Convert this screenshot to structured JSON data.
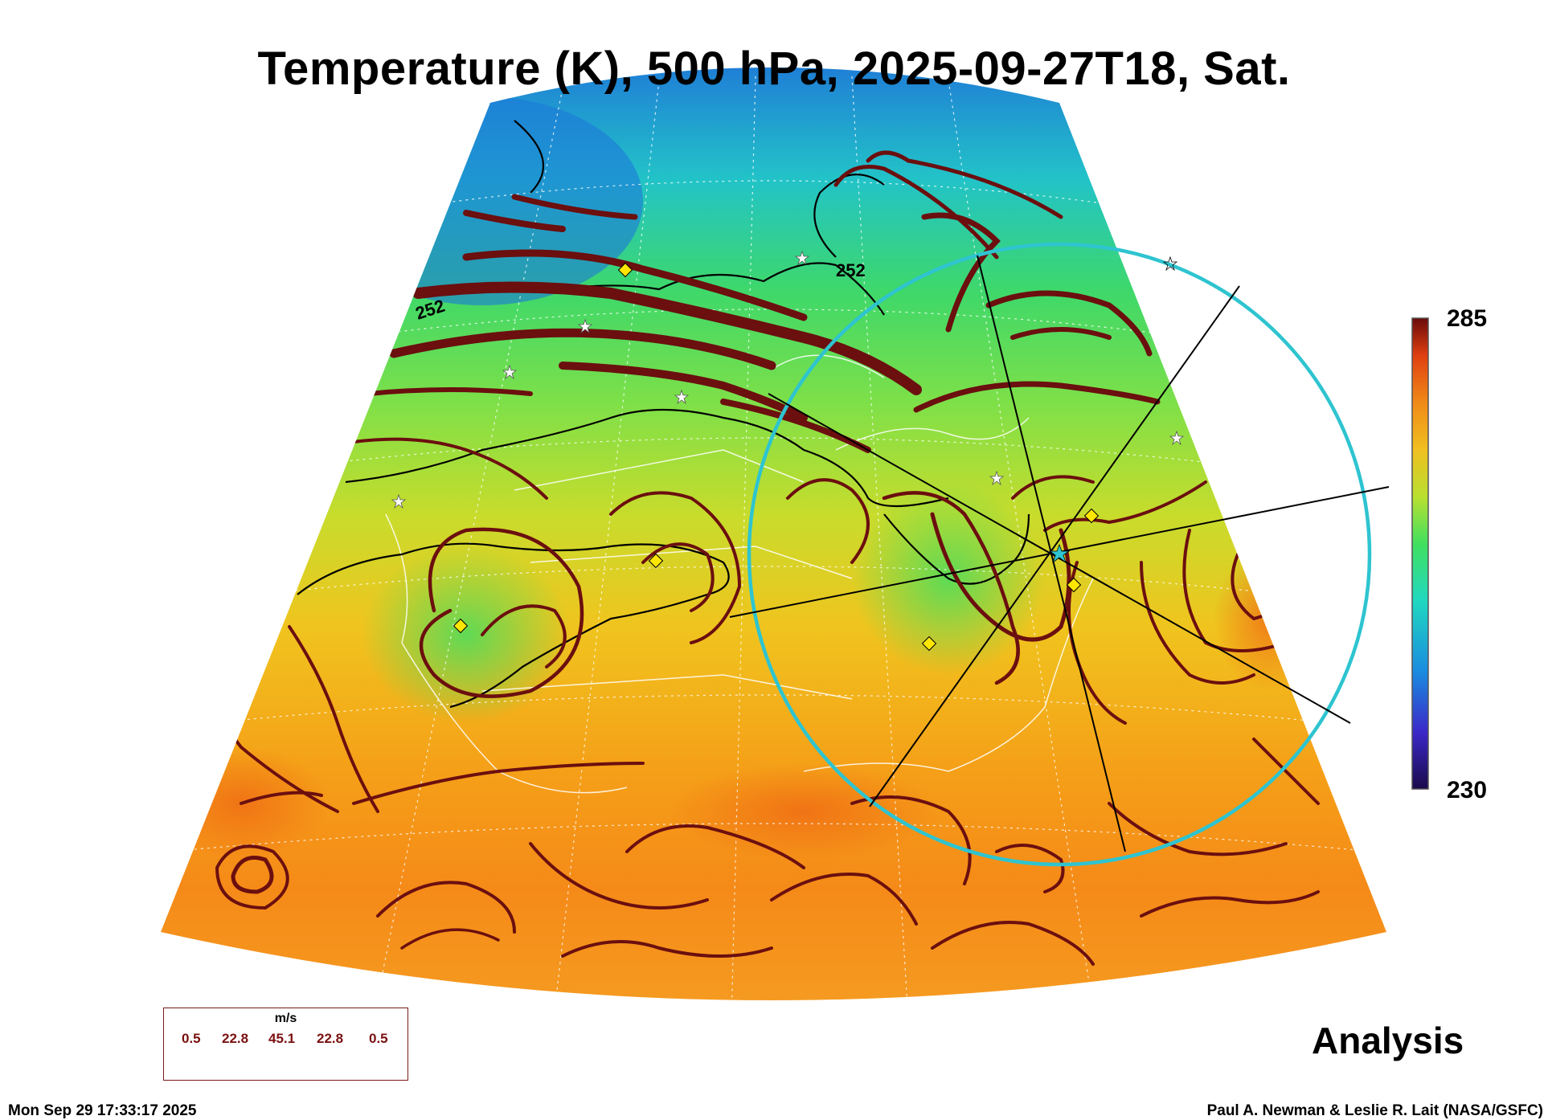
{
  "title": "Temperature (K), 500 hPa, 2025-09-27T18, Sat.",
  "colorbar": {
    "max": "285",
    "min": "230"
  },
  "contour_labels": [
    "252",
    "252"
  ],
  "legend": {
    "unit": "m/s",
    "values": [
      "0.5",
      "22.8",
      "45.1",
      "22.8",
      "0.5"
    ]
  },
  "label_analysis": "Analysis",
  "timestamp": "Mon Sep 29 17:33:17 2025",
  "credit": "Paul A. Newman & Leslie R. Lait (NASA/GSFC)",
  "colors": {
    "streamline": "#6b0f0f",
    "target_circle": "#2ec4d0",
    "marker_diamond": "#ffe600",
    "colormap": [
      "#1a0a4a",
      "#3b28c8",
      "#1a8ce0",
      "#20d8c0",
      "#40e060",
      "#b8e030",
      "#f0c020",
      "#f08a18",
      "#e04010",
      "#6a0a0a"
    ]
  }
}
